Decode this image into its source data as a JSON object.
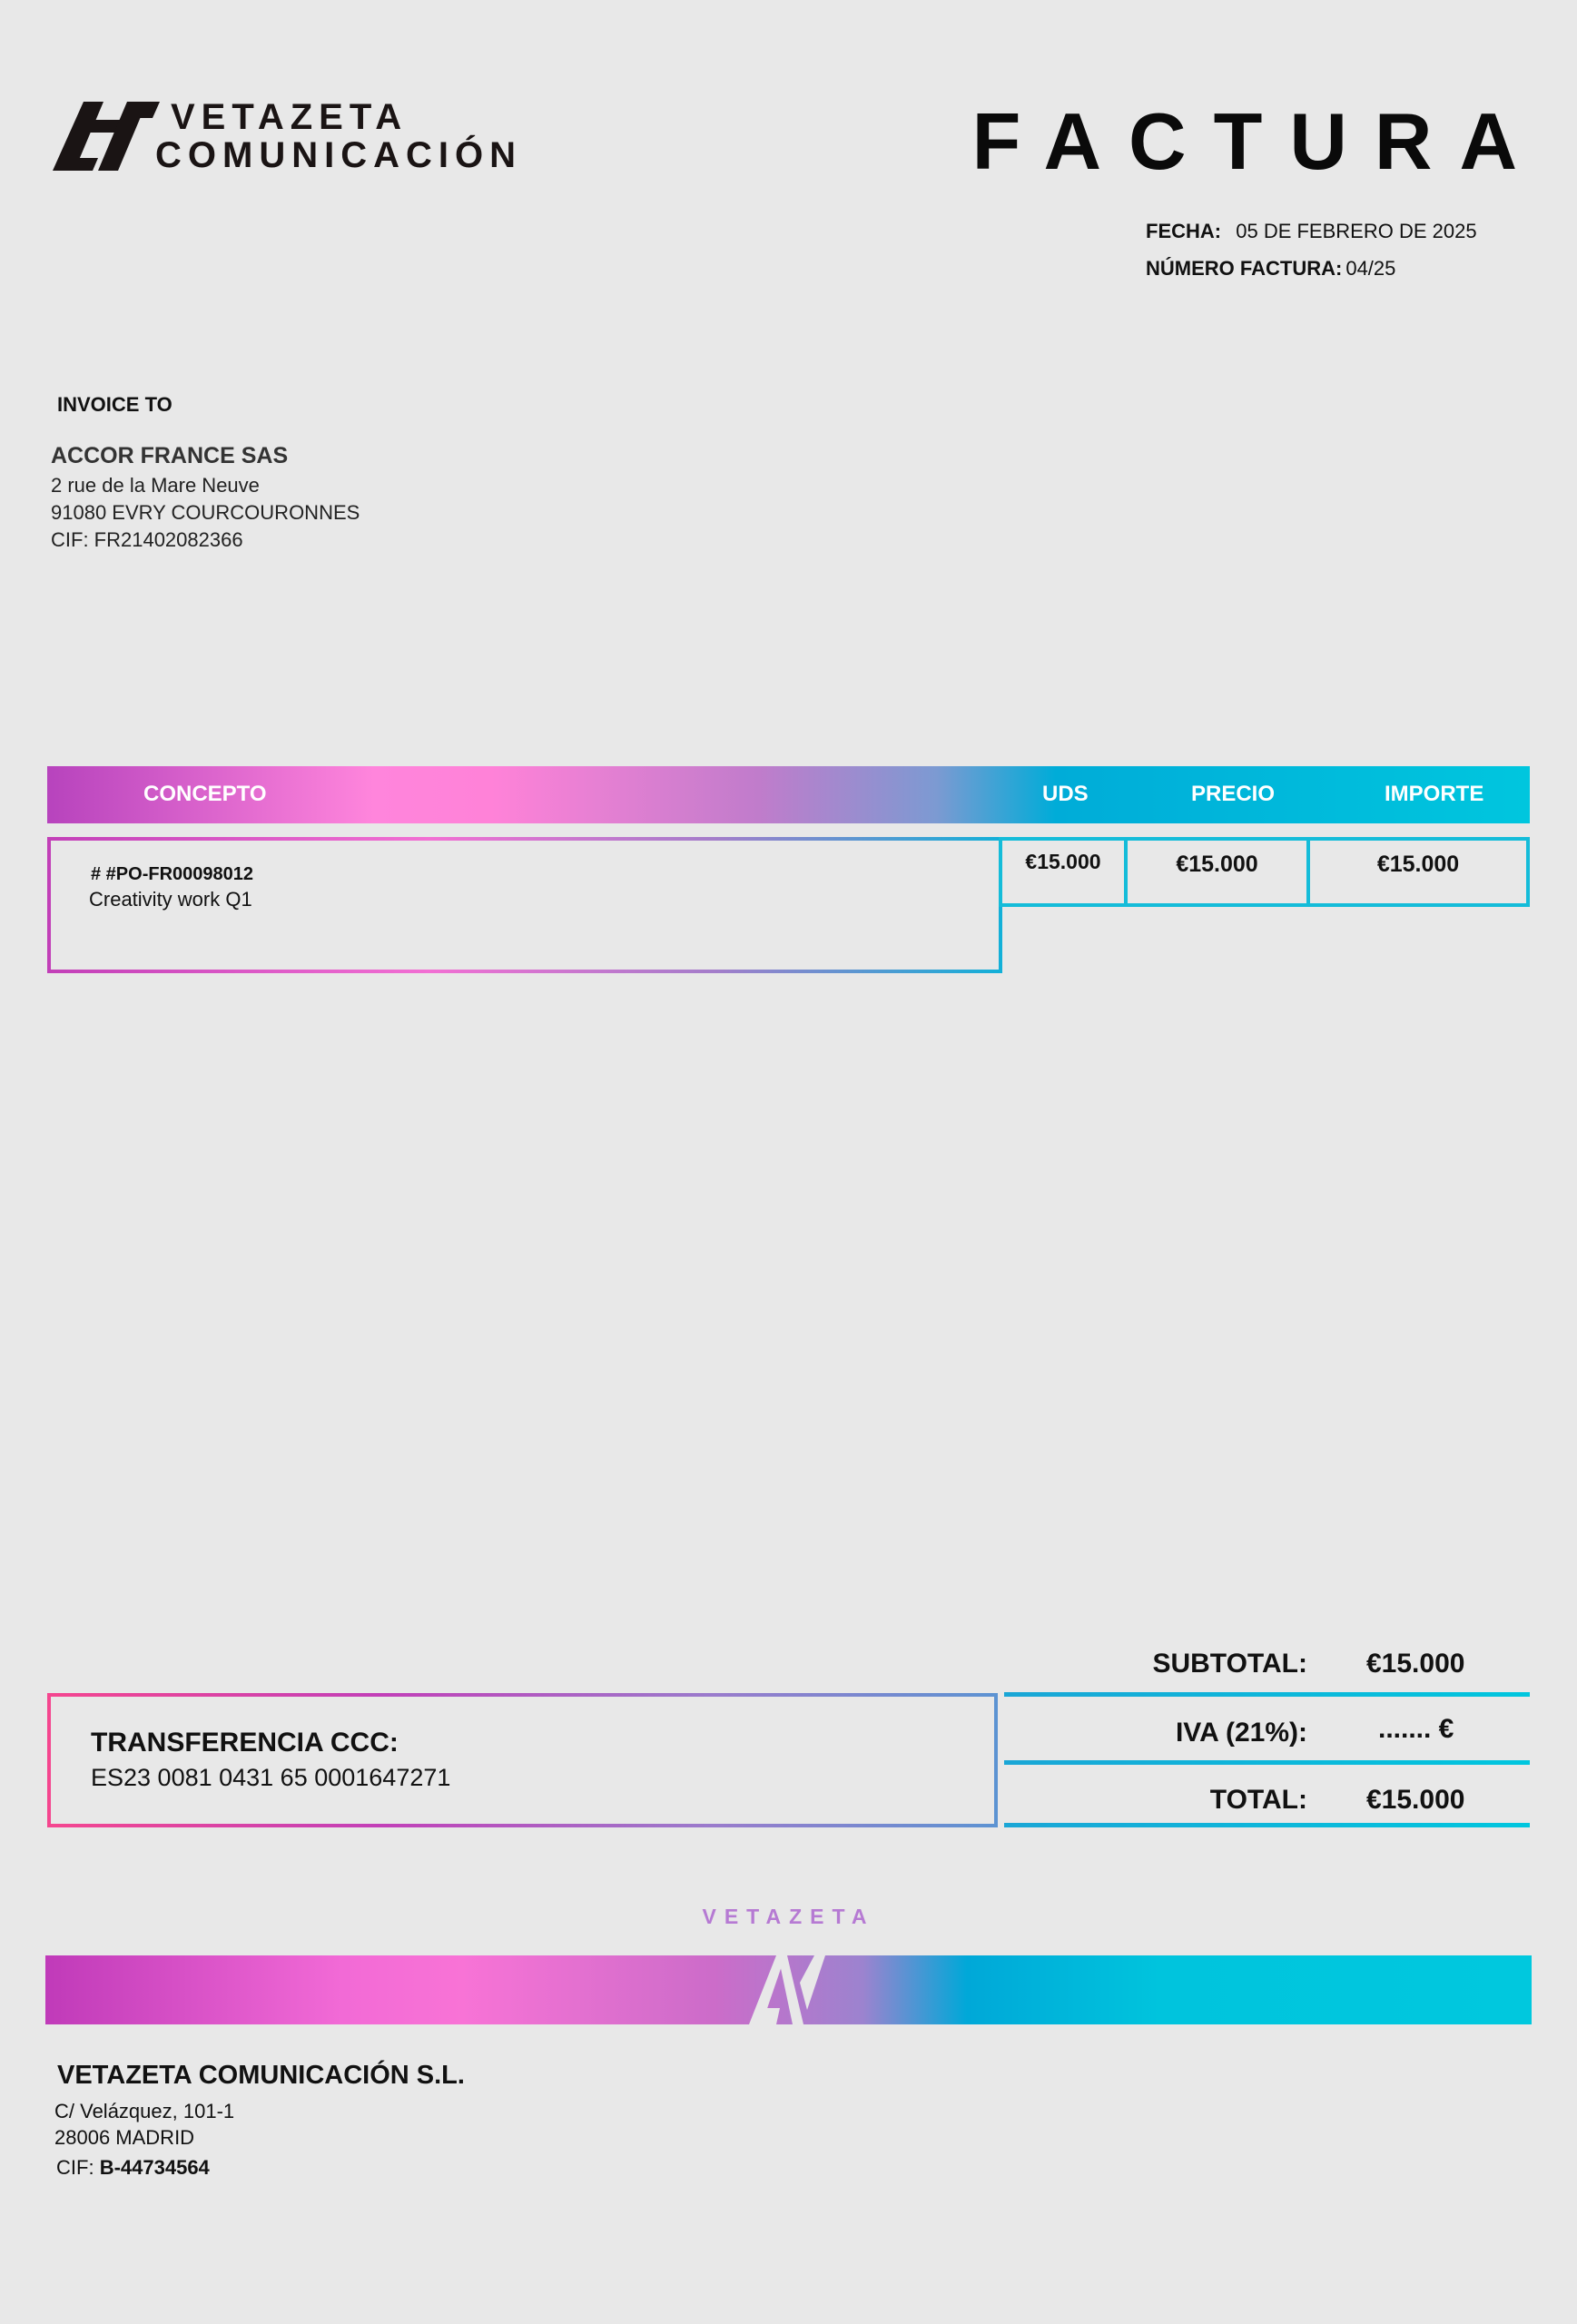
{
  "brand": {
    "line1": "VETAZETA",
    "line2": "COMUNICACIÓN",
    "footer_word": "VETAZETA"
  },
  "title": "FACTURA",
  "meta": {
    "date_label": "FECHA:",
    "date": "05 DE FEBRERO DE 2025",
    "number_label": "NÚMERO FACTURA:",
    "number": "04/25"
  },
  "client": {
    "heading": "INVOICE TO",
    "name": "ACCOR FRANCE SAS",
    "address1": "2 rue de la Mare Neuve",
    "address2": "91080 EVRY COURCOURONNES",
    "cif": "CIF: FR21402082366"
  },
  "table": {
    "headers": [
      "CONCEPTO",
      "UDS",
      "PRECIO",
      "IMPORTE"
    ],
    "rows": [
      {
        "ref": "# #PO-FR00098012",
        "description": "Creativity work Q1",
        "uds": "€15.000",
        "precio": "€15.000",
        "importe": "€15.000"
      }
    ]
  },
  "payment": {
    "label": "TRANSFERENCIA CCC:",
    "iban": "ES23 0081 0431 65 0001647271"
  },
  "totals": {
    "subtotal_label": "SUBTOTAL:",
    "subtotal": "€15.000",
    "iva_label": "IVA (21%):",
    "iva": "....... €",
    "total_label": "TOTAL:",
    "total": "€15.000"
  },
  "company": {
    "name": "VETAZETA COMUNICACIÓN S.L.",
    "address1": "C/ Velázquez, 101-1",
    "address2": "28006 MADRID",
    "cif_label": "CIF:",
    "cif": "B-44734564"
  },
  "colors": {
    "pink": "#ff85dc",
    "magenta": "#b743bd",
    "cyan": "#00c6de",
    "blue": "#00acd8"
  }
}
